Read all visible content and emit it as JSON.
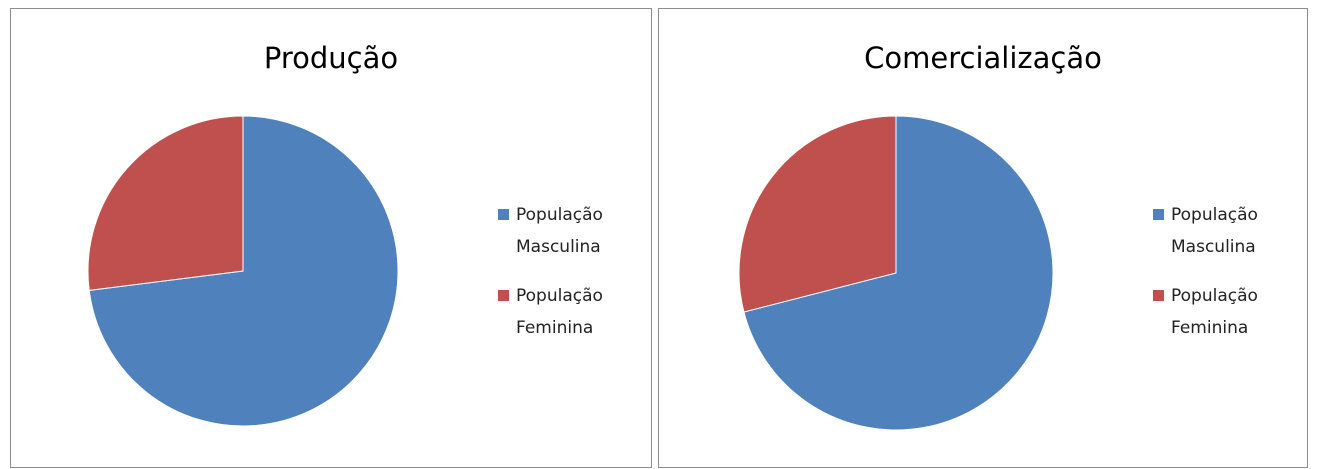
{
  "chart_data": [
    {
      "type": "pie",
      "title": "Produção",
      "categories": [
        "População Masculina",
        "População Feminina"
      ],
      "values": [
        73,
        27
      ],
      "colors": [
        "#4f81bd",
        "#c0504d"
      ],
      "legend": "right"
    },
    {
      "type": "pie",
      "title": "Comercialização",
      "categories": [
        "População Masculina",
        "População Feminina"
      ],
      "values": [
        71,
        29
      ],
      "colors": [
        "#4f81bd",
        "#c0504d"
      ],
      "legend": "right"
    }
  ]
}
